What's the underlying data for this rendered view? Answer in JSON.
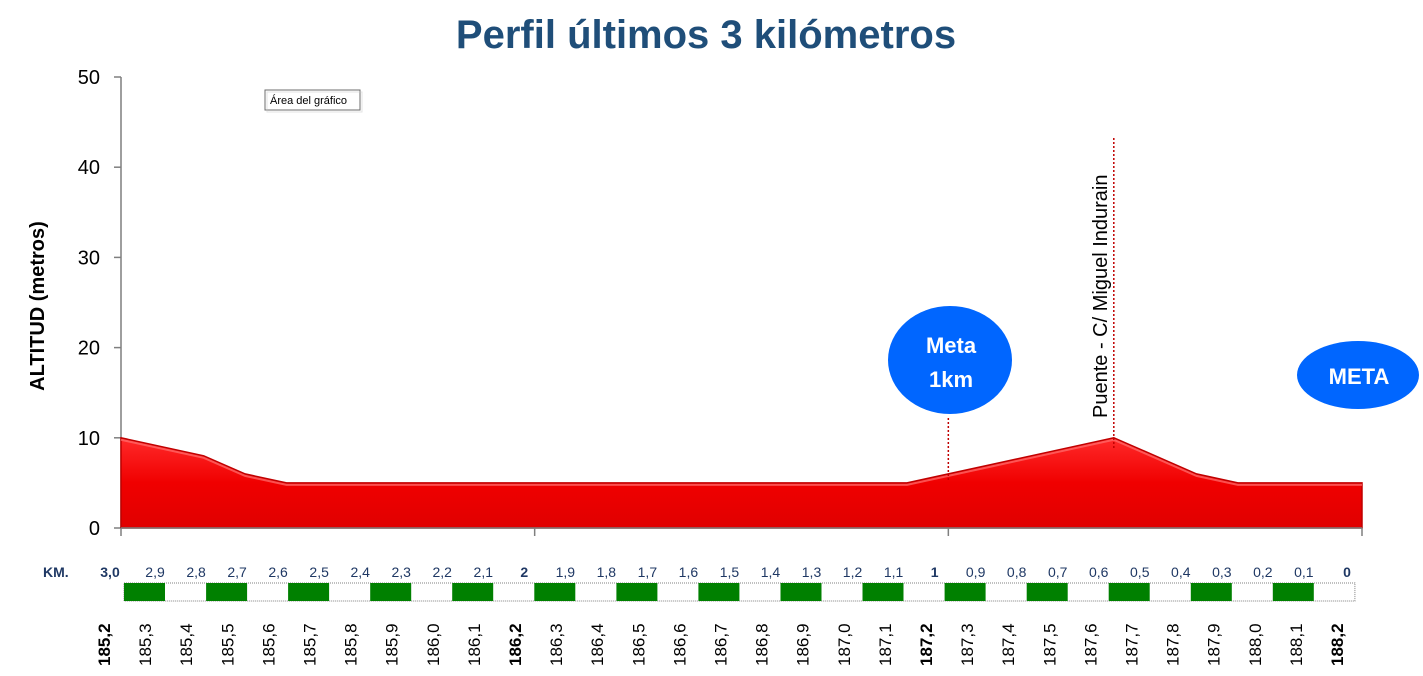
{
  "chart_data": {
    "type": "area",
    "title": "Perfil últimos 3 kilómetros",
    "ylabel": "ALTITUD (metros)",
    "ylim": [
      0,
      50
    ],
    "yticks": [
      "0",
      "10",
      "20",
      "30",
      "40",
      "50"
    ],
    "x_km_remaining": [
      3.0,
      2.9,
      2.8,
      2.7,
      2.6,
      2.5,
      2.4,
      2.3,
      2.2,
      2.1,
      2.0,
      1.9,
      1.8,
      1.7,
      1.6,
      1.5,
      1.4,
      1.3,
      1.2,
      1.1,
      1.0,
      0.9,
      0.8,
      0.7,
      0.6,
      0.5,
      0.4,
      0.3,
      0.2,
      0.1,
      0.0
    ],
    "altitude": [
      10,
      9,
      8,
      6,
      5,
      5,
      5,
      5,
      5,
      5,
      5,
      5,
      5,
      5,
      5,
      5,
      5,
      5,
      5,
      5,
      6,
      7,
      8,
      9,
      10,
      8,
      6,
      5,
      5,
      5,
      5
    ],
    "km_label": "KM.",
    "km_ticks": [
      "3,0",
      "2,9",
      "2,8",
      "2,7",
      "2,6",
      "2,5",
      "2,4",
      "2,3",
      "2,2",
      "2,1",
      "2",
      "1,9",
      "1,8",
      "1,7",
      "1,6",
      "1,5",
      "1,4",
      "1,3",
      "1,2",
      "1,1",
      "1",
      "0,9",
      "0,8",
      "0,7",
      "0,6",
      "0,5",
      "0,4",
      "0,3",
      "0,2",
      "0,1",
      "0"
    ],
    "km_bold": [
      0,
      10,
      20,
      30
    ],
    "pk_ticks": [
      "185,2",
      "185,3",
      "185,4",
      "185,5",
      "185,6",
      "185,7",
      "185,8",
      "185,9",
      "186,0",
      "186,1",
      "186,2",
      "186,3",
      "186,4",
      "186,5",
      "186,6",
      "186,7",
      "186,8",
      "186,9",
      "187,0",
      "187,1",
      "187,2",
      "187,3",
      "187,4",
      "187,5",
      "187,6",
      "187,7",
      "187,8",
      "187,9",
      "188,0",
      "188,1",
      "188,2"
    ],
    "pk_bold": [
      0,
      10,
      20,
      30
    ],
    "annotations": {
      "meta_1km": {
        "line1": "Meta",
        "line2": "1km",
        "at_km_remaining": 1.0
      },
      "puente": {
        "text": "Puente - C/ Miguel Indurain",
        "at_km_remaining": 0.6
      },
      "meta": {
        "text": "META"
      }
    },
    "tooltip": "Área del gráfico",
    "colors": {
      "fill": "#ff0000",
      "title": "#1f4e79",
      "bubble": "#0066ff",
      "km_text": "#1f3864",
      "stripe": "#008000"
    }
  }
}
